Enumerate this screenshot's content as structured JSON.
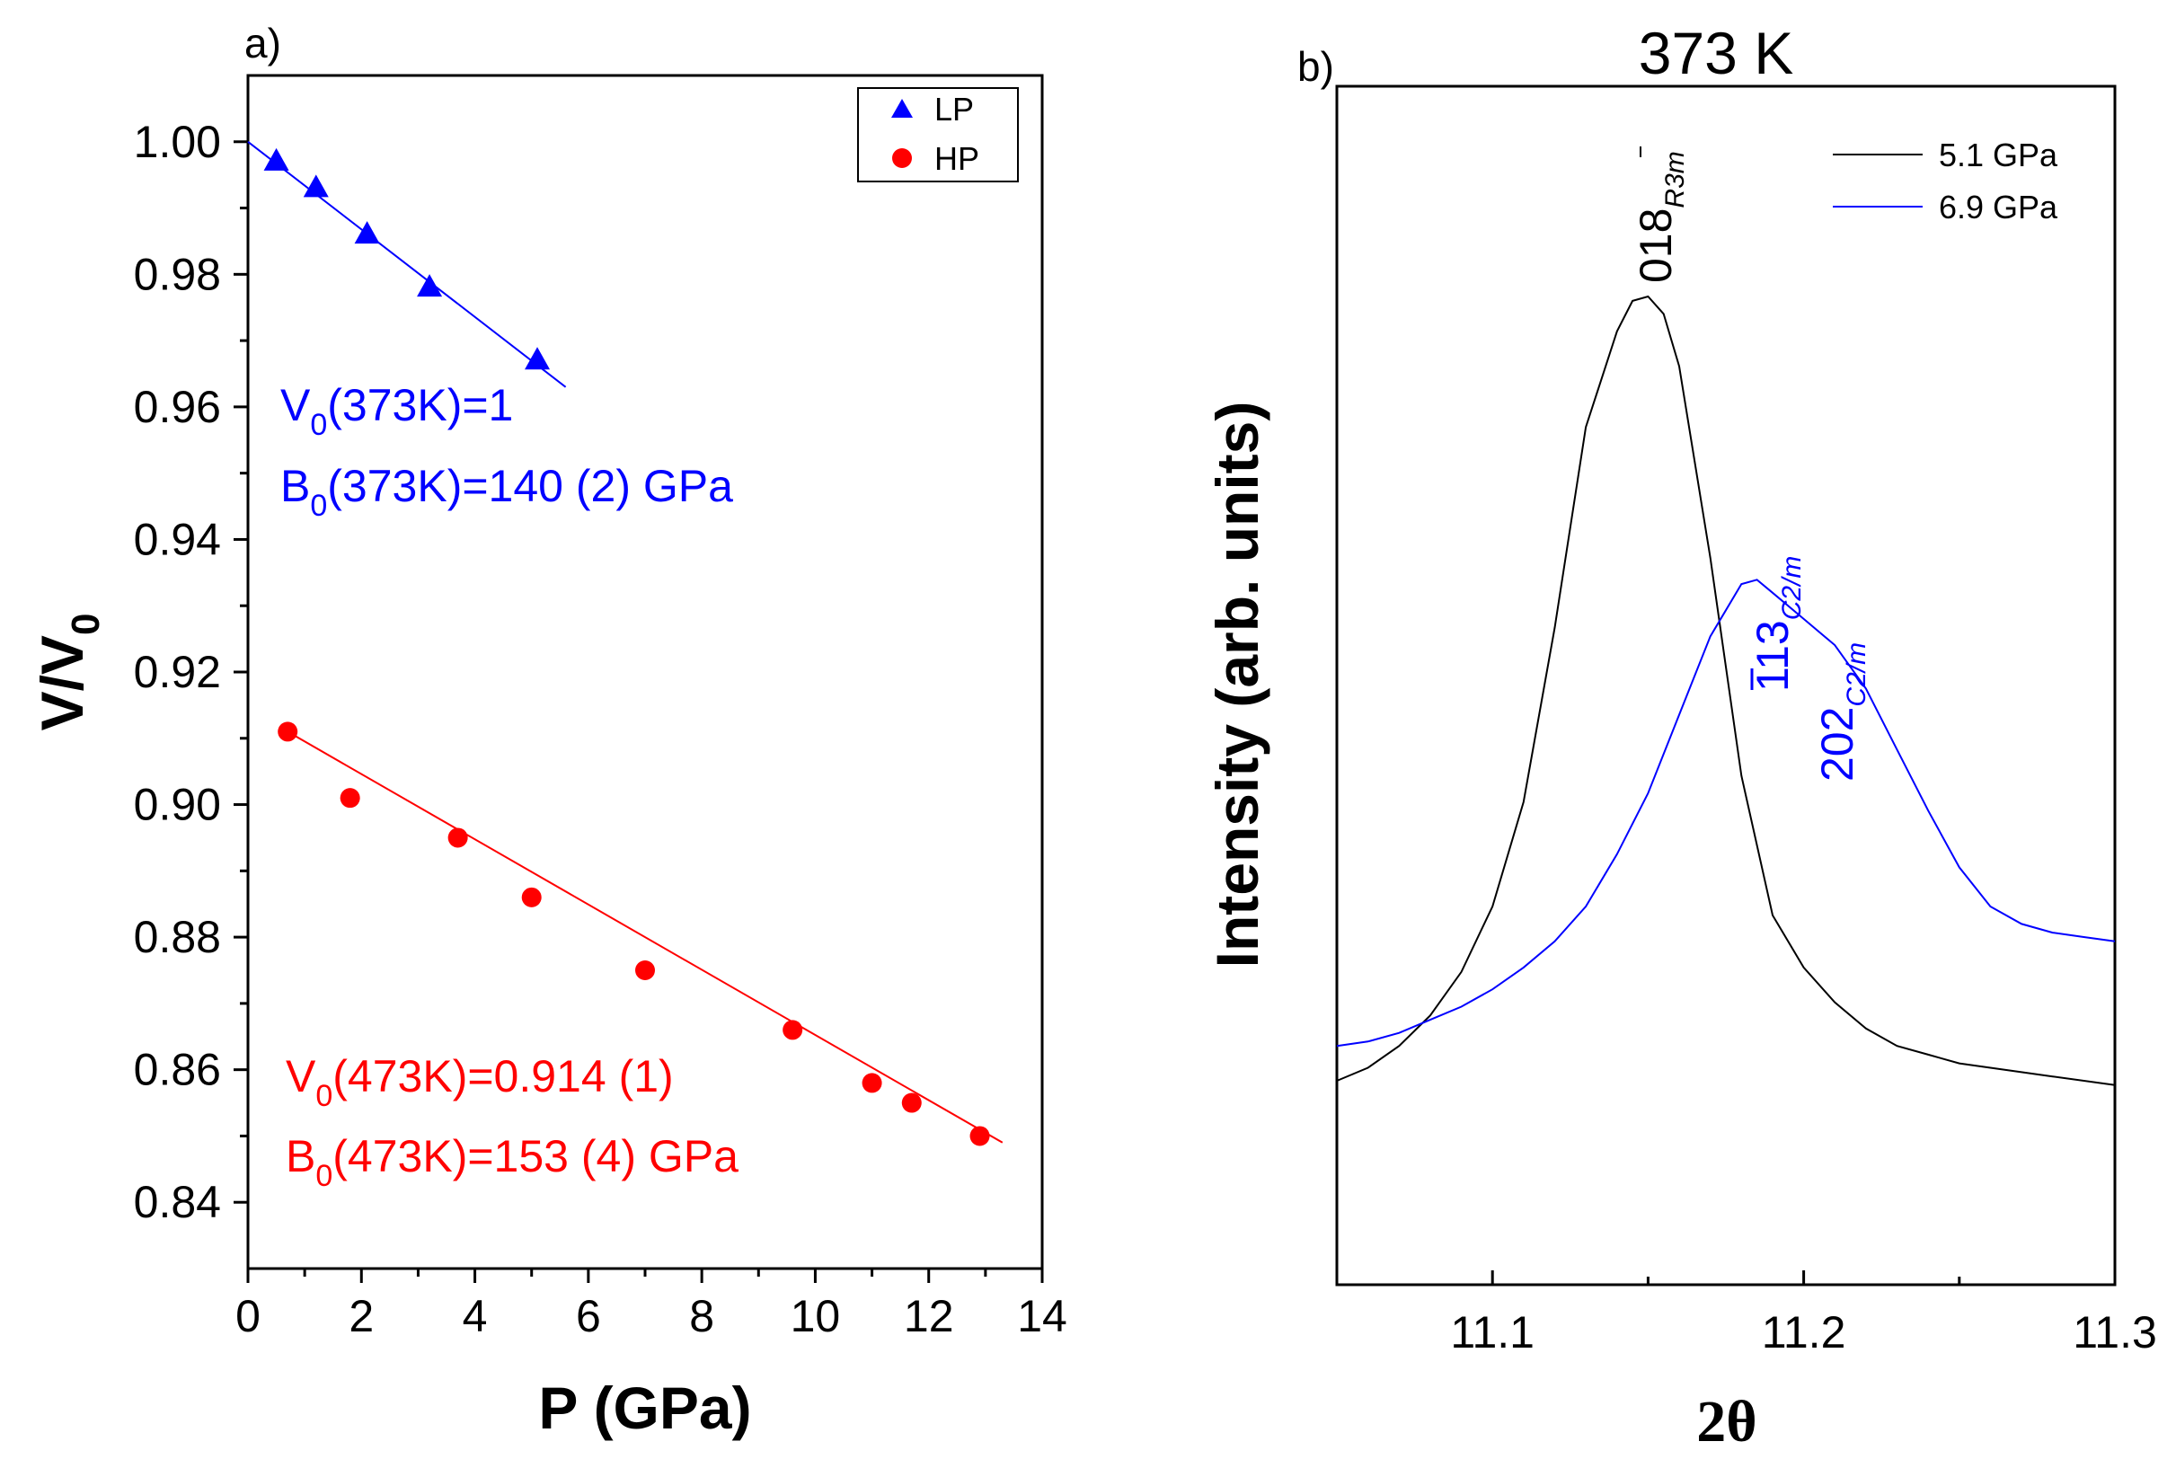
{
  "chart_data": [
    {
      "panel": "a)",
      "type": "scatter",
      "xlabel": "P (GPa)",
      "ylabel_main": "V/V",
      "ylabel_sub": "0",
      "xlim": [
        0,
        14
      ],
      "ylim": [
        0.83,
        1.01
      ],
      "xticks": [
        0,
        2,
        4,
        6,
        8,
        10,
        12,
        14
      ],
      "yticks": [
        0.84,
        0.86,
        0.88,
        0.9,
        0.92,
        0.94,
        0.96,
        0.98,
        1.0
      ],
      "xtick_labels": [
        "0",
        "2",
        "4",
        "6",
        "8",
        "10",
        "12",
        "14"
      ],
      "ytick_labels": [
        "0.84",
        "0.86",
        "0.88",
        "0.90",
        "0.92",
        "0.94",
        "0.96",
        "0.98",
        "1.00"
      ],
      "grid": false,
      "legend_position": "top-right",
      "series": [
        {
          "name": "LP",
          "marker": "triangle",
          "color": "#0000ff",
          "x": [
            0.5,
            1.2,
            2.1,
            3.2,
            5.1
          ],
          "y": [
            0.997,
            0.993,
            0.986,
            0.978,
            0.967
          ],
          "fit_x": [
            0,
            5.6
          ],
          "fit_y": [
            1.0,
            0.963
          ]
        },
        {
          "name": "HP",
          "marker": "circle",
          "color": "#ff0000",
          "x": [
            0.7,
            1.8,
            3.7,
            5.0,
            7.0,
            9.6,
            11.0,
            11.7,
            12.9
          ],
          "y": [
            0.911,
            0.901,
            0.895,
            0.886,
            0.875,
            0.866,
            0.858,
            0.855,
            0.85
          ],
          "fit_x": [
            0.7,
            13.3
          ],
          "fit_y": [
            0.911,
            0.849
          ]
        }
      ],
      "annotations": [
        {
          "color": "#0000ff",
          "parts": [
            "V",
            "0",
            "(373K)=1"
          ]
        },
        {
          "color": "#0000ff",
          "parts": [
            "B",
            "0",
            "(373K)=140 (2) GPa"
          ]
        },
        {
          "color": "#ff0000",
          "parts": [
            "V",
            "0",
            "(473K)=0.914 (1)"
          ]
        },
        {
          "color": "#ff0000",
          "parts": [
            "B",
            "0",
            "(473K)=153 (4) GPa"
          ]
        }
      ]
    },
    {
      "panel": "b)",
      "type": "line",
      "title": "373 K",
      "xlabel": "2θ",
      "ylabel": "Intensity (arb. units)",
      "xlim": [
        11.05,
        11.3
      ],
      "xticks": [
        11.1,
        11.2,
        11.3
      ],
      "xtick_labels": [
        "11.1",
        "11.2",
        "11.3"
      ],
      "ylim": [
        0,
        1
      ],
      "grid": false,
      "legend_position": "top-right",
      "series": [
        {
          "name": "5.1 GPa",
          "color": "#000000",
          "x": [
            11.05,
            11.06,
            11.07,
            11.08,
            11.09,
            11.1,
            11.11,
            11.12,
            11.13,
            11.14,
            11.145,
            11.15,
            11.155,
            11.16,
            11.17,
            11.18,
            11.19,
            11.2,
            11.21,
            11.22,
            11.23,
            11.24,
            11.25,
            11.26,
            11.28,
            11.3
          ],
          "y": [
            0.1,
            0.115,
            0.14,
            0.175,
            0.225,
            0.3,
            0.42,
            0.62,
            0.85,
            0.96,
            0.995,
            1.0,
            0.98,
            0.92,
            0.7,
            0.45,
            0.29,
            0.23,
            0.19,
            0.16,
            0.14,
            0.13,
            0.12,
            0.115,
            0.105,
            0.095
          ]
        },
        {
          "name": "6.9 GPa",
          "color": "#0000ff",
          "x": [
            11.05,
            11.06,
            11.07,
            11.08,
            11.09,
            11.1,
            11.11,
            11.12,
            11.13,
            11.14,
            11.15,
            11.16,
            11.17,
            11.18,
            11.185,
            11.19,
            11.2,
            11.21,
            11.22,
            11.23,
            11.24,
            11.25,
            11.26,
            11.27,
            11.28,
            11.29,
            11.3
          ],
          "y": [
            0.14,
            0.145,
            0.155,
            0.17,
            0.185,
            0.205,
            0.23,
            0.26,
            0.3,
            0.36,
            0.43,
            0.52,
            0.61,
            0.67,
            0.675,
            0.66,
            0.63,
            0.6,
            0.55,
            0.48,
            0.41,
            0.345,
            0.3,
            0.28,
            0.27,
            0.265,
            0.26
          ]
        }
      ],
      "peak_labels": [
        {
          "color": "#000000",
          "main": "018",
          "sub": "R3m",
          "overbar_char": "3"
        },
        {
          "color": "#0000ff",
          "main": "113",
          "sub": "C2/m",
          "overbar": "1"
        },
        {
          "color": "#0000ff",
          "main": "202",
          "sub": "C2/m"
        }
      ]
    }
  ]
}
